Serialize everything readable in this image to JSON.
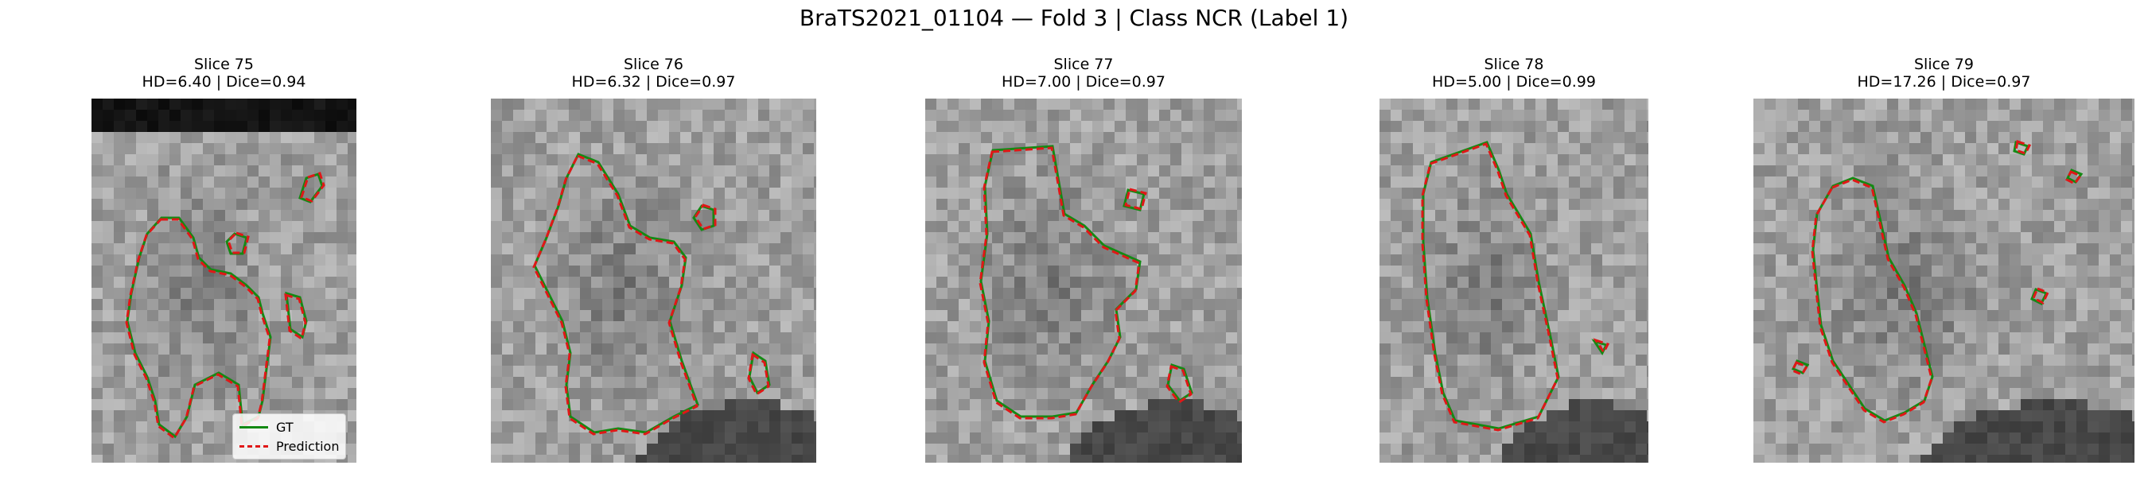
{
  "figure_title": "BraTS2021_01104 — Fold 3 | Class NCR (Label 1)",
  "legend": {
    "gt_label": "GT",
    "pred_label": "Prediction",
    "gt_color": "#138a13",
    "pred_color": "#e01717"
  },
  "panels": [
    {
      "slice": "Slice 75",
      "metrics": "HD=6.40 | Dice=0.94"
    },
    {
      "slice": "Slice 76",
      "metrics": "HD=6.32 | Dice=0.97"
    },
    {
      "slice": "Slice 77",
      "metrics": "HD=7.00 | Dice=0.97"
    },
    {
      "slice": "Slice 78",
      "metrics": "HD=5.00 | Dice=0.99"
    },
    {
      "slice": "Slice 79",
      "metrics": "HD=17.26 | Dice=0.97"
    }
  ]
}
